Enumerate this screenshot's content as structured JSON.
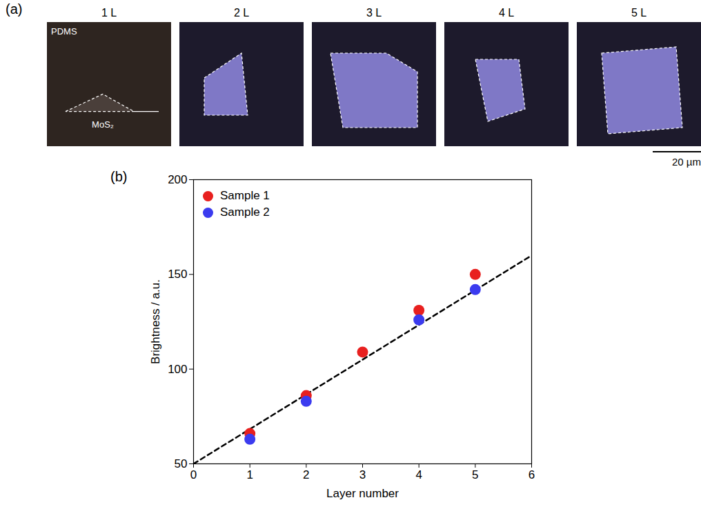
{
  "figure_a": {
    "panel": "(a)",
    "scale_bar": "20 µm",
    "images": [
      {
        "title": "1 L",
        "labels": [
          "PDMS",
          "MoS₂"
        ]
      },
      {
        "title": "2 L",
        "labels": []
      },
      {
        "title": "3 L",
        "labels": []
      },
      {
        "title": "4 L",
        "labels": []
      },
      {
        "title": "5 L",
        "labels": []
      }
    ]
  },
  "chart_data": {
    "type": "scatter",
    "panel": "(b)",
    "x_label": "Layer number",
    "y_label": "Brightness / a.u.",
    "x": [
      1,
      2,
      3,
      4,
      5
    ],
    "series": [
      {
        "name": "Sample 1",
        "color": "#e8201f",
        "marker": "circle",
        "values": [
          66,
          86,
          109,
          131,
          150
        ]
      },
      {
        "name": "Sample 2",
        "color": "#3b3bef",
        "marker": "circle",
        "values": [
          63,
          83,
          null,
          126,
          142
        ]
      }
    ],
    "fit_line": {
      "x": [
        0,
        6
      ],
      "y": [
        50,
        160
      ],
      "color": "#000000",
      "line_style": "dashed"
    },
    "xlim": [
      0,
      6
    ],
    "xticks": [
      0,
      1,
      2,
      3,
      4,
      5,
      6
    ],
    "ylim": [
      50,
      200
    ],
    "yticks": [
      50,
      100,
      150,
      200
    ],
    "legend": "top-left",
    "grid": false
  }
}
